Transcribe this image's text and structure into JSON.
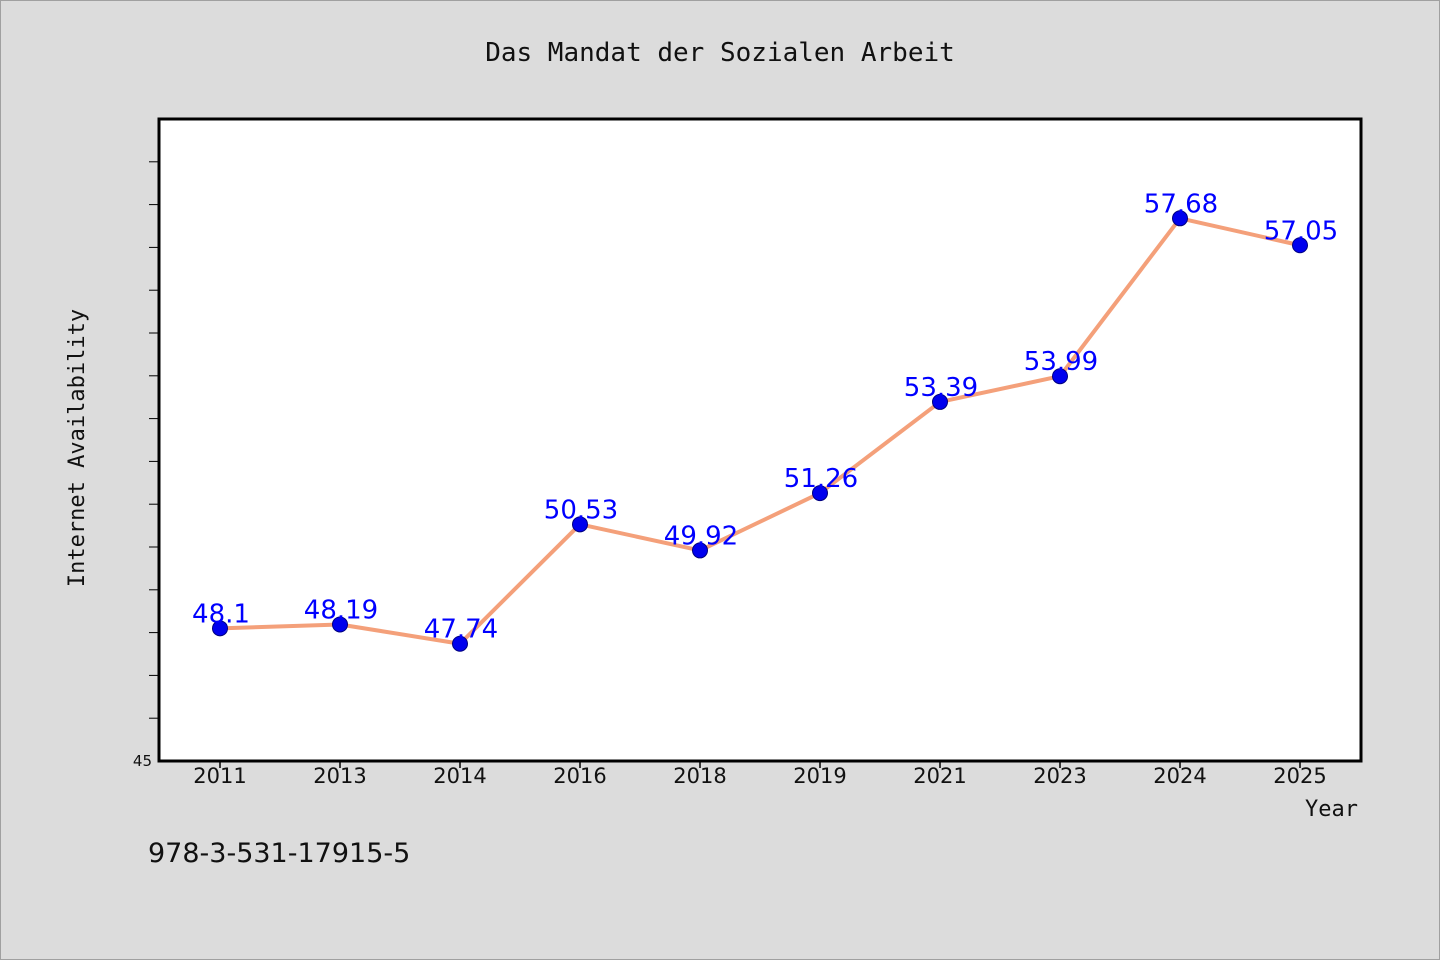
{
  "colors": {
    "background": "#dcdcdc",
    "plot_background": "#ffffff",
    "line": "#f4a07a",
    "marker": "#0000ee",
    "data_label": "#0000ff"
  },
  "footer_text": "978-3-531-17915-5",
  "chart_data": {
    "type": "line",
    "title": "Das Mandat der Sozialen Arbeit",
    "xlabel": "Year",
    "ylabel": "Internet Availability",
    "categories": [
      "2011",
      "2013",
      "2014",
      "2016",
      "2018",
      "2019",
      "2021",
      "2023",
      "2024",
      "2025"
    ],
    "values": [
      48.1,
      48.19,
      47.74,
      50.53,
      49.92,
      51.26,
      53.39,
      53.99,
      57.68,
      57.05
    ],
    "value_labels": [
      "48.1",
      "48.19",
      "47.74",
      "50.53",
      "49.92",
      "51.26",
      "53.39",
      "53.99",
      "57.68",
      "57.05"
    ],
    "ylim": [
      45,
      60
    ],
    "y_tick_label": "45",
    "grid": false,
    "legend": "none"
  }
}
